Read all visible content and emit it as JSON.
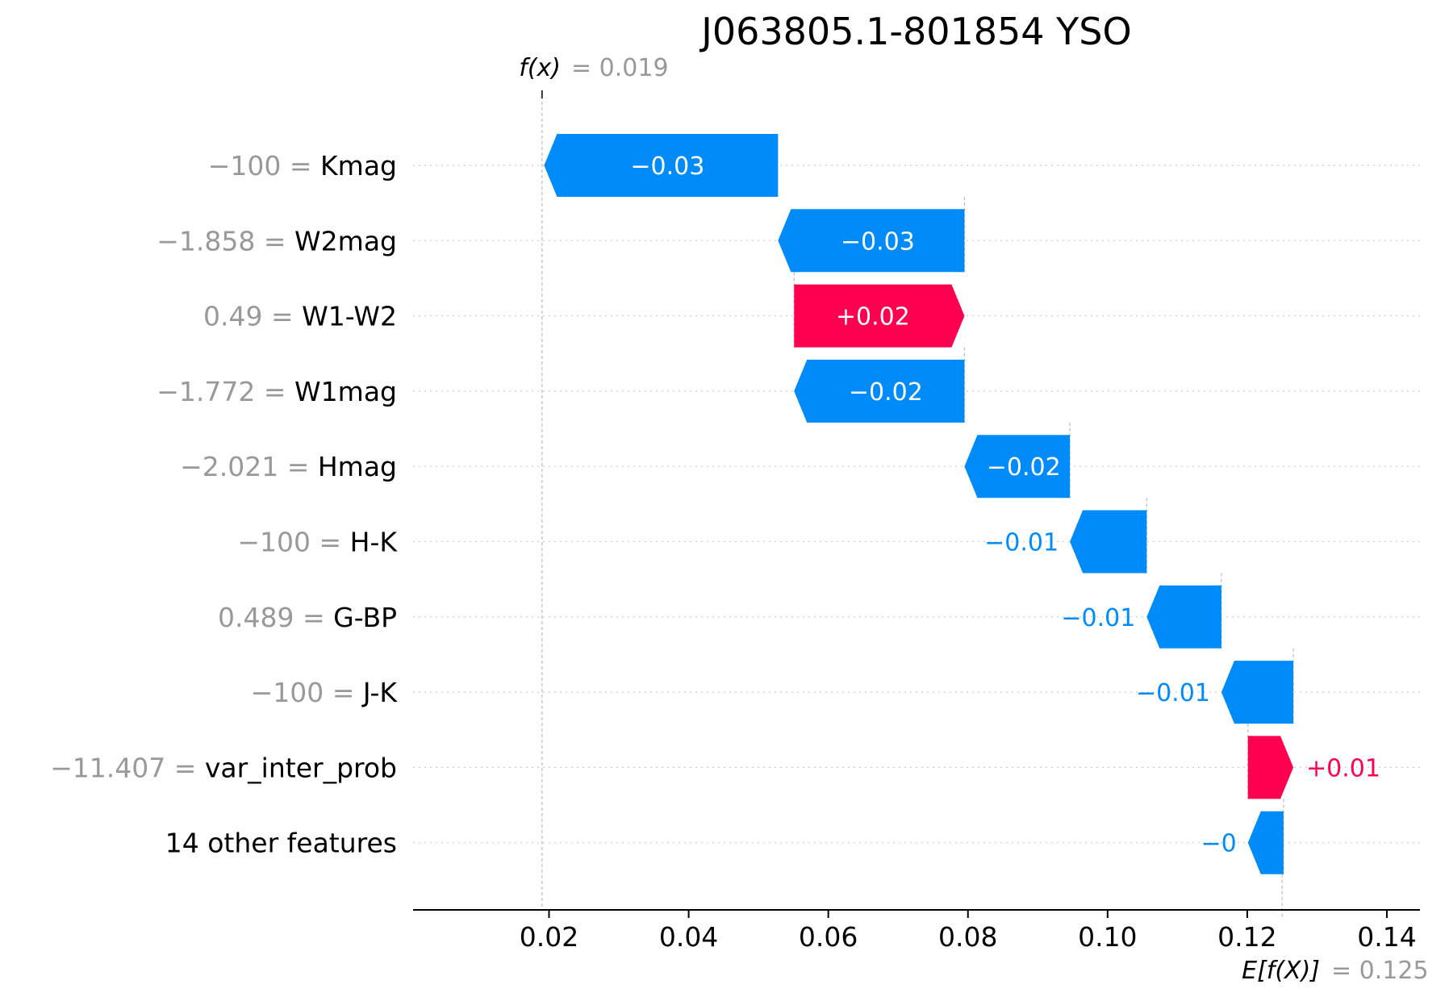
{
  "chart_data": {
    "type": "waterfall",
    "title": "J063805.1-801854 YSO",
    "fx_label": "f(x)",
    "fx_value_text": "= 0.019",
    "fx_value": 0.019,
    "ex_label": "E[f(X)]",
    "ex_value_text": "= 0.125",
    "ex_value": 0.125,
    "xlim": [
      0.0,
      0.1455
    ],
    "xticks": [
      {
        "value": 0.02,
        "label": "0.02"
      },
      {
        "value": 0.04,
        "label": "0.04"
      },
      {
        "value": 0.06,
        "label": "0.06"
      },
      {
        "value": 0.08,
        "label": "0.08"
      },
      {
        "value": 0.1,
        "label": "0.10"
      },
      {
        "value": 0.12,
        "label": "0.12"
      },
      {
        "value": 0.14,
        "label": "0.14"
      }
    ],
    "features": [
      {
        "value_text": "−100",
        "name": "Kmag",
        "start": 0.0528,
        "end": 0.0193,
        "label": "−0.03",
        "direction": "negative"
      },
      {
        "value_text": "−1.858",
        "name": "W2mag",
        "start": 0.0795,
        "end": 0.0528,
        "label": "−0.03",
        "direction": "negative"
      },
      {
        "value_text": "0.49",
        "name": "W1-W2",
        "start": 0.0551,
        "end": 0.0795,
        "label": "+0.02",
        "direction": "positive"
      },
      {
        "value_text": "−1.772",
        "name": "W1mag",
        "start": 0.0795,
        "end": 0.0551,
        "label": "−0.02",
        "direction": "negative"
      },
      {
        "value_text": "−2.021",
        "name": "Hmag",
        "start": 0.0946,
        "end": 0.0795,
        "label": "−0.02",
        "direction": "negative"
      },
      {
        "value_text": "−100",
        "name": "H-K",
        "start": 0.1056,
        "end": 0.0946,
        "label": "−0.01",
        "direction": "negative"
      },
      {
        "value_text": "0.489",
        "name": "G-BP",
        "start": 0.1163,
        "end": 0.1056,
        "label": "−0.01",
        "direction": "negative"
      },
      {
        "value_text": "−100",
        "name": "J-K",
        "start": 0.1266,
        "end": 0.1163,
        "label": "−0.01",
        "direction": "negative"
      },
      {
        "value_text": "−11.407",
        "name": "var_inter_prob",
        "start": 0.1201,
        "end": 0.1266,
        "label": "+0.01",
        "direction": "positive"
      },
      {
        "value_text": "",
        "name": "14 other features",
        "start": 0.1252,
        "end": 0.1201,
        "label": "−0",
        "direction": "negative"
      }
    ],
    "colors": {
      "positive": "#ff0051",
      "negative": "#008bfb",
      "label_grey": "#999999"
    }
  }
}
